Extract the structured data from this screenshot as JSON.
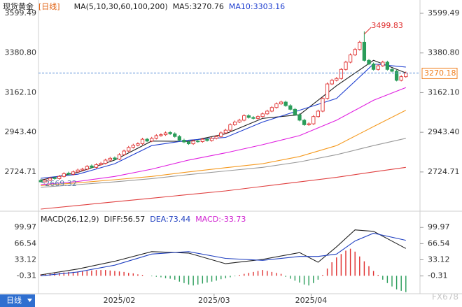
{
  "chart_data": [
    {
      "type": "candlestick",
      "title": "现货黄金",
      "period": "[日线]",
      "period_tag": "日线",
      "indicator": "MA(5,10,30,60,100,200)",
      "up_color": "#e03030",
      "down_color": "#2a9d5a",
      "xlim": [
        -0.5,
        81
      ],
      "ylim": [
        2516,
        3642
      ],
      "yticks": [
        3599.49,
        {
          "value": 3380.8,
          "label": "3380.80"
        },
        {
          "value": 3162.1,
          "label": "3162.10"
        },
        {
          "value": 2943.4,
          "label": "2943.40"
        },
        2724.71
      ],
      "x": [
        0,
        1,
        2,
        3,
        4,
        5,
        6,
        7,
        8,
        9,
        10,
        11,
        12,
        13,
        14,
        15,
        16,
        17,
        18,
        19,
        20,
        21,
        22,
        23,
        24,
        25,
        26,
        27,
        28,
        29,
        30,
        31,
        32,
        33,
        34,
        35,
        36,
        37,
        38,
        39,
        40,
        41,
        42,
        43,
        44,
        45,
        46,
        47,
        48,
        49,
        50,
        51,
        52,
        53,
        54,
        55,
        56,
        57,
        58,
        59,
        60,
        61,
        62,
        63,
        64,
        65,
        66,
        67,
        68,
        69,
        70,
        71,
        72,
        73,
        74,
        75,
        76,
        77,
        78,
        79
      ],
      "open": [
        2678,
        2670,
        2680,
        2692,
        2688,
        2700,
        2718,
        2712,
        2725,
        2735,
        2740,
        2758,
        2750,
        2765,
        2772,
        2790,
        2802,
        2795,
        2820,
        2840,
        2860,
        2872,
        2880,
        2905,
        2895,
        2910,
        2925,
        2930,
        2942,
        2935,
        2920,
        2900,
        2890,
        2880,
        2895,
        2892,
        2905,
        2898,
        2910,
        2920,
        2940,
        2955,
        2985,
        3000,
        3010,
        3035,
        3025,
        3020,
        3030,
        3045,
        3060,
        3080,
        3100,
        3110,
        3090,
        3070,
        3040,
        3010,
        2985,
        2990,
        3030,
        3060,
        3130,
        3210,
        3230,
        3240,
        3290,
        3330,
        3370,
        3400,
        3440,
        3340,
        3320,
        3290,
        3310,
        3330,
        3290,
        3280,
        3230,
        3250
      ],
      "high": [
        2686,
        2688,
        2698,
        2700,
        2708,
        2723,
        2726,
        2733,
        2743,
        2748,
        2763,
        2766,
        2773,
        2780,
        2798,
        2808,
        2810,
        2828,
        2848,
        2868,
        2880,
        2888,
        2913,
        2913,
        2918,
        2933,
        2938,
        2948,
        2950,
        2943,
        2928,
        2908,
        2898,
        2903,
        2903,
        2913,
        2913,
        2918,
        2928,
        2948,
        2963,
        2993,
        3008,
        3018,
        3043,
        3043,
        3033,
        3038,
        3053,
        3068,
        3088,
        3108,
        3118,
        3118,
        3098,
        3078,
        3048,
        3018,
        2998,
        3038,
        3068,
        3138,
        3218,
        3238,
        3248,
        3298,
        3338,
        3378,
        3408,
        3448,
        3499.83,
        3348,
        3328,
        3318,
        3338,
        3338,
        3298,
        3288,
        3258,
        3278
      ],
      "low": [
        2669.32,
        2670,
        2674,
        2682,
        2682,
        2694,
        2706,
        2706,
        2719,
        2729,
        2734,
        2744,
        2744,
        2759,
        2766,
        2784,
        2789,
        2789,
        2814,
        2834,
        2854,
        2866,
        2874,
        2889,
        2889,
        2904,
        2919,
        2924,
        2929,
        2914,
        2894,
        2884,
        2874,
        2874,
        2886,
        2886,
        2892,
        2892,
        2904,
        2914,
        2934,
        2949,
        2979,
        2994,
        3004,
        3019,
        3014,
        3014,
        3024,
        3039,
        3054,
        3074,
        3094,
        3084,
        3064,
        3034,
        3004,
        2979,
        2979,
        2984,
        3024,
        3054,
        3124,
        3204,
        3224,
        3234,
        3284,
        3324,
        3364,
        3394,
        3334,
        3314,
        3284,
        3284,
        3304,
        3284,
        3274,
        3224,
        3224,
        3244
      ],
      "close": [
        2670,
        2680,
        2690,
        2688,
        2700,
        2715,
        2712,
        2725,
        2735,
        2740,
        2755,
        2750,
        2765,
        2772,
        2790,
        2800,
        2795,
        2820,
        2840,
        2860,
        2872,
        2880,
        2905,
        2895,
        2910,
        2925,
        2930,
        2940,
        2935,
        2920,
        2900,
        2890,
        2880,
        2895,
        2892,
        2905,
        2898,
        2910,
        2920,
        2940,
        2955,
        2985,
        3000,
        3010,
        3035,
        3025,
        3020,
        3030,
        3045,
        3060,
        3080,
        3100,
        3110,
        3090,
        3070,
        3040,
        3010,
        2985,
        2990,
        3030,
        3060,
        3130,
        3210,
        3230,
        3240,
        3290,
        3330,
        3370,
        3400,
        3440,
        3340,
        3320,
        3290,
        3310,
        3330,
        3290,
        3280,
        3230,
        3250,
        3270.18
      ],
      "ma_series": [
        {
          "name": "MA5:3270.76",
          "color": "#222222",
          "x": [
            0,
            8,
            16,
            24,
            32,
            40,
            48,
            56,
            64,
            72,
            79
          ],
          "values": [
            2680,
            2722,
            2790,
            2895,
            2893,
            2935,
            3020,
            3040,
            3200,
            3340,
            3270.76
          ]
        },
        {
          "name": "MA10:3303.16",
          "color": "#2040d0",
          "x": [
            0,
            8,
            16,
            24,
            32,
            40,
            48,
            56,
            64,
            72,
            79
          ],
          "values": [
            2690,
            2712,
            2770,
            2870,
            2900,
            2915,
            3000,
            3065,
            3130,
            3320,
            3303.16
          ]
        },
        {
          "color": "#e020e0",
          "x": [
            0,
            8,
            16,
            24,
            32,
            40,
            48,
            56,
            64,
            72,
            79
          ],
          "values": [
            2655,
            2672,
            2700,
            2740,
            2790,
            2830,
            2875,
            2925,
            3010,
            3120,
            3190
          ]
        },
        {
          "color": "#f59a20",
          "x": [
            0,
            8,
            16,
            24,
            32,
            40,
            48,
            56,
            64,
            72,
            79
          ],
          "values": [
            2650,
            2665,
            2682,
            2700,
            2725,
            2748,
            2770,
            2810,
            2870,
            2975,
            3065
          ]
        },
        {
          "color": "#999999",
          "x": [
            0,
            8,
            16,
            24,
            32,
            40,
            48,
            56,
            64,
            72,
            79
          ],
          "values": [
            2640,
            2655,
            2670,
            2688,
            2710,
            2730,
            2750,
            2780,
            2820,
            2870,
            2910
          ]
        },
        {
          "color": "#e04040",
          "x": [
            0,
            8,
            16,
            24,
            32,
            40,
            48,
            56,
            64,
            72,
            79
          ],
          "values": [
            2520,
            2540,
            2560,
            2580,
            2600,
            2620,
            2645,
            2670,
            2695,
            2725,
            2750
          ]
        }
      ],
      "annotations": [
        {
          "label": "3499.83",
          "value": 3499.83,
          "x": 70,
          "color": "#e03030"
        },
        {
          "label": "2669.32",
          "value": 2669.32,
          "x": 0,
          "color": "#5a7fa8"
        }
      ],
      "last_price": {
        "label": "3270.18",
        "value": 3270.18,
        "color": "#f08020"
      }
    },
    {
      "type": "macd",
      "title": "MACD(26,12,9)",
      "xlim": [
        -0.5,
        81
      ],
      "ylim": [
        -37,
        122
      ],
      "yticks": [
        99.97,
        66.54,
        33.12,
        -0.31
      ],
      "xticks": [
        {
          "value": 17,
          "label": "2025/02"
        },
        {
          "value": 37.5,
          "label": "2025/03"
        },
        {
          "value": 58.5,
          "label": "2025/04"
        }
      ],
      "x": [
        0,
        8,
        16,
        24,
        32,
        40,
        48,
        56,
        60,
        64,
        68,
        72,
        79
      ],
      "series": [
        {
          "name": "DIFF:56.57",
          "color": "#222222",
          "values": [
            2,
            14,
            30,
            50,
            47,
            25,
            34,
            48,
            28,
            60,
            95,
            92,
            56.57
          ]
        },
        {
          "name": "DEA:73.44",
          "color": "#2040c0",
          "values": [
            0,
            8,
            22,
            45,
            50,
            36,
            32,
            40,
            40,
            45,
            72,
            88,
            73.44
          ]
        }
      ],
      "histogram": {
        "name": "MACD:-33.73",
        "color": "#d020d0",
        "up_color": "#e03030",
        "down_color": "#2a9d5a",
        "values": [
          3,
          4,
          5,
          6,
          6,
          7,
          8,
          8,
          9,
          10,
          10,
          11,
          12,
          12,
          12,
          11,
          10,
          9,
          8,
          6,
          5,
          3,
          2,
          0,
          -1,
          -2,
          -3,
          -5,
          -6,
          -8,
          -12,
          -15,
          -18,
          -20,
          -18,
          -16,
          -14,
          -12,
          -10,
          -7,
          -5,
          -3,
          -1,
          2,
          4,
          6,
          8,
          10,
          12,
          10,
          8,
          6,
          4,
          -2,
          -6,
          -10,
          -14,
          -18,
          -20,
          -15,
          -8,
          2,
          15,
          28,
          38,
          45,
          52,
          56,
          50,
          40,
          30,
          20,
          10,
          2,
          -8,
          -15,
          -22,
          -28,
          -31,
          -33.73
        ]
      },
      "watermark": "FX678"
    }
  ]
}
